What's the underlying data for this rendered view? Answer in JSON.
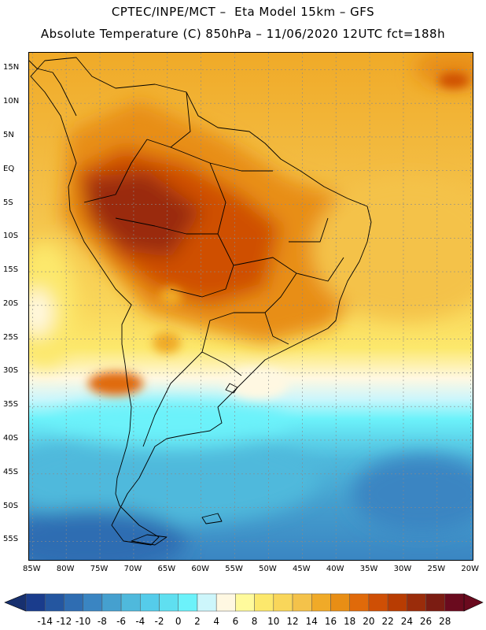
{
  "title_line1": "CPTEC/INPE/MCT –  Eta Model 15km – GFS",
  "title_line2": "Absolute Temperature (C) 850hPa – 11/06/2020 12UTC fct=188h",
  "lat_labels": [
    "15N",
    "10N",
    "5N",
    "EQ",
    "5S",
    "10S",
    "15S",
    "20S",
    "25S",
    "30S",
    "35S",
    "40S",
    "45S",
    "50S",
    "55S"
  ],
  "lat_values": [
    15,
    10,
    5,
    0,
    -5,
    -10,
    -15,
    -20,
    -25,
    -30,
    -35,
    -40,
    -45,
    -50,
    -55
  ],
  "lon_labels": [
    "85W",
    "80W",
    "75W",
    "70W",
    "65W",
    "60W",
    "55W",
    "50W",
    "45W",
    "40W",
    "35W",
    "30W",
    "25W",
    "20W"
  ],
  "lon_values": [
    -85,
    -80,
    -75,
    -70,
    -65,
    -60,
    -55,
    -50,
    -45,
    -40,
    -35,
    -30,
    -25,
    -20
  ],
  "map_extent": {
    "lon_min": -85.5,
    "lon_max": -19.5,
    "lat_min": -58,
    "lat_max": 17.5
  },
  "colorbar": {
    "labels": [
      "-14",
      "-12",
      "-10",
      "-8",
      "-6",
      "-4",
      "-2",
      "0",
      "2",
      "4",
      "6",
      "8",
      "10",
      "12",
      "14",
      "16",
      "18",
      "20",
      "22",
      "24",
      "26",
      "28"
    ],
    "colors": [
      "#1a3c8c",
      "#2456a0",
      "#2f6db2",
      "#3a85c2",
      "#45a0cf",
      "#4fb9dc",
      "#55ccea",
      "#5fdff0",
      "#6cf2fa",
      "#cdf6fb",
      "#fff8e2",
      "#fffa9c",
      "#fce86c",
      "#f9d65a",
      "#f4c24a",
      "#f0aa28",
      "#e88e15",
      "#e06a0a",
      "#cf4f05",
      "#b83c02",
      "#9a2c0a",
      "#7b1c12",
      "#6a0a1e"
    ],
    "arrow_left_color": "#17306f",
    "arrow_right_color": "#6a0a1e"
  }
}
